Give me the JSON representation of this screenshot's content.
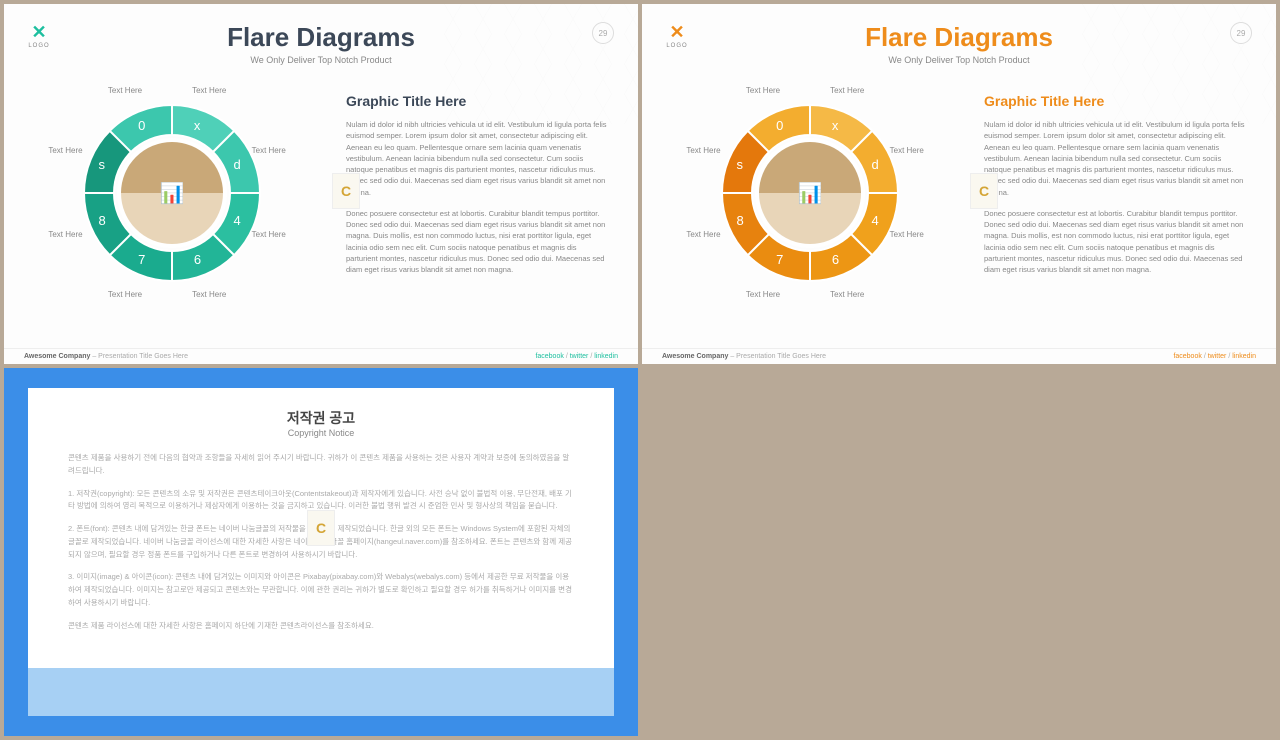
{
  "page_bg": "#b8a997",
  "slide_common": {
    "logo_text": "LOGO",
    "page_number": "29",
    "subtitle": "We Only Deliver Top Notch Product",
    "main_title": "Flare Diagrams",
    "graphic_title": "Graphic Title Here",
    "para1": "Nulam id dolor id nibh ultricies vehicula ut id elit. Vestibulum id ligula porta felis euismod semper. Lorem ipsum dolor sit amet, consectetur adipiscing elit. Aenean eu leo quam. Pellentesque ornare sem lacinia quam venenatis vestibulum. Aenean lacinia bibendum nulla sed consectetur. Cum sociis natoque penatibus et magnis dis parturient montes, nascetur ridiculus mus. Donec sed odio dui. Maecenas sed diam eget risus varius blandit sit amet non magna.",
    "para2": "Donec posuere consectetur est at lobortis. Curabitur blandit tempus porttitor. Donec sed odio dui. Maecenas sed diam eget risus varius blandit sit amet non magna. Duis mollis, est non commodo luctus, nisi erat porttitor ligula, eget lacinia odio sem nec elit. Cum sociis natoque penatibus et magnis dis parturient montes, nascetur ridiculus mus. Donec sed odio dui. Maecenas sed diam eget risus varius blandit sit amet non magna.",
    "footer_company": "Awesome Company",
    "footer_tail": " – Presentation Title Goes Here",
    "social": {
      "facebook": "facebook",
      "twitter": "twitter",
      "linkedin": "linkedin"
    },
    "segments": [
      "x",
      "d",
      "4",
      "6",
      "7",
      "8",
      "s",
      "0"
    ],
    "text_label": "Text Here",
    "cert_letter": "C",
    "chart_emoji": "📊"
  },
  "teal": {
    "ring_colors": [
      "#4fd0b8",
      "#3cc7ad",
      "#2bbfa0",
      "#22b597",
      "#1aab8e",
      "#18a185",
      "#17977c",
      "#3cc7ad"
    ],
    "accent": "#1dbf9f",
    "title_color": "#3c4858"
  },
  "orange": {
    "ring_colors": [
      "#f5b946",
      "#f3ad2f",
      "#f0a11c",
      "#ed9614",
      "#ea8c10",
      "#e7820e",
      "#e4780c",
      "#f3ad2f"
    ],
    "accent": "#ee8c1b",
    "title_color": "#ee8c1b"
  },
  "copyright": {
    "title_kr": "저작권 공고",
    "title_en": "Copyright Notice",
    "p_intro": "콘텐츠 제품을 사용하기 전에 다음의 협약과 조항들을 자세히 읽어 주시기 바랍니다. 귀하가 이 콘텐츠 제품을 사용하는 것은 사용자 계약과 보증에 동의하였음을 알려드립니다.",
    "p1": "1. 저작권(copyright): 모든 콘텐츠의 소유 및 저작권은 콘텐츠테이크아웃(Contentstakeout)과 제작자에게 있습니다. 사전 승낙 없이 불법적 이용, 무단전재, 배포 기타 방법에 의하여 영리 목적으로 이용하거나 제삼자에게 이용하는 것을 금지하고 있습니다. 이러한 불법 행위 발견 시 준엄한 민사 및 형사상의 책임을 묻습니다.",
    "p2": "2. 폰트(font): 콘텐츠 내에 담겨있는 한글 폰트는 네이버 나눔글꼴의 저작물을 이용하여 제작되었습니다. 한글 외의 모든 폰트는 Windows System에 포함된 자체의 글꼴로 제작되었습니다. 네이버 나눔글꼴 라이선스에 대한 자세한 사항은 네이버 나눔글꼴 홈페이지(hangeul.naver.com)를 참조하세요. 폰트는 콘텐츠와 함께 제공되지 않으며, 필요할 경우 정품 폰트를 구입하거나 다른 폰트로 변경하여 사용하시기 바랍니다.",
    "p3": "3. 이미지(image) & 아이콘(icon): 콘텐츠 내에 담겨있는 이미지와 아이콘은 Pixabay(pixabay.com)와 Webalys(webalys.com) 등에서 제공한 무료 저작물을 이용하여 제작되었습니다. 이미지는 참고로만 제공되고 콘텐츠와는 무관합니다. 이에 관한 권리는 귀하가 별도로 확인하고 필요할 경우 허가를 취득하거나 이미지를 변경하여 사용하시기 바랍니다.",
    "p_outro": "콘텐츠 제품 라이선스에 대한 자세한 사항은 홈페이지 하단에 기재한 콘텐츠라이선스를 참조하세요.",
    "frame_color": "#3b8ee8",
    "lower_color": "#a7d0f4"
  }
}
